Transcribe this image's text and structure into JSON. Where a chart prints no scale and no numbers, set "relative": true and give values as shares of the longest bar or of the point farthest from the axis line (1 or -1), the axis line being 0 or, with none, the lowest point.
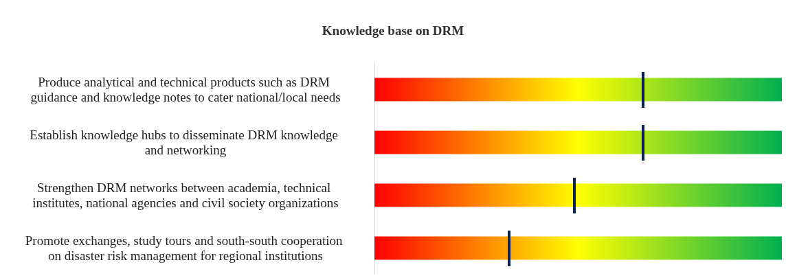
{
  "chart_data": {
    "type": "bar",
    "orientation": "horizontal",
    "relative": true,
    "stacked": true,
    "title": "Knowledge base on DRM",
    "categories": [
      "Produce analytical and technical products such as DRM guidance and knowledge notes to cater national/local needs",
      "Establish knowledge hubs to disseminate DRM knowledge and networking",
      "Strengthen DRM networks between academia, technical institutes, national agencies and civil society organizations",
      "Promote exchanges, study tours and south-south cooperation on disaster risk management for regional institutions"
    ],
    "series": [
      {
        "values": [
          0.66,
          0.66,
          0.49,
          0.33
        ]
      },
      {
        "values": [
          0.34,
          0.34,
          0.51,
          0.67
        ]
      }
    ]
  }
}
